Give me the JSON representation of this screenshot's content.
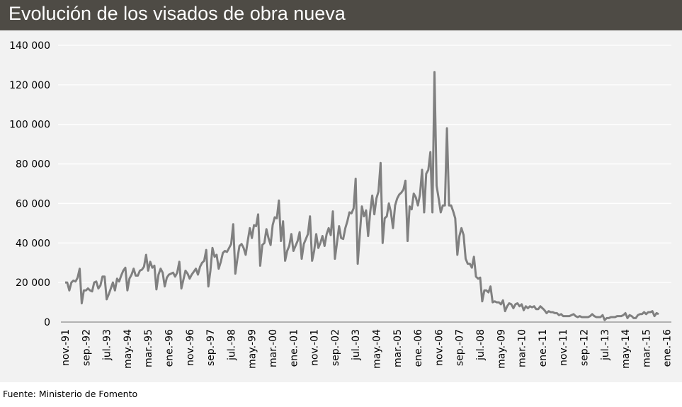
{
  "chart_data": {
    "type": "line",
    "title": "Evolución de los visados de obra nueva",
    "xlabel": "",
    "ylabel": "",
    "ylim": [
      0,
      140000
    ],
    "y_ticks": [
      0,
      20000,
      40000,
      60000,
      80000,
      100000,
      120000,
      140000
    ],
    "y_tick_labels": [
      "0",
      "20 000",
      "40 000",
      "60 000",
      "80 000",
      "100 000",
      "120 000",
      "140 000"
    ],
    "x_tick_labels": [
      "nov.-91",
      "sep.-92",
      "jul.-93",
      "may.-94",
      "mar.-95",
      "ene.-96",
      "nov.-96",
      "sep.-97",
      "jul.-98",
      "may.-99",
      "mar.-00",
      "ene.-01",
      "nov.-01",
      "sep.-02",
      "jul.-03",
      "may.-04",
      "mar.-05",
      "ene.-06",
      "nov.-06",
      "sep.-07",
      "jul.-08",
      "may.-09",
      "mar.-10",
      "ene.-11",
      "nov.-11",
      "sep.-12",
      "jul.-13",
      "may.-14",
      "mar.-15",
      "ene.-16"
    ],
    "x_tick_interval_months": 10,
    "frequency": "monthly",
    "grid": true,
    "line_color": "#808080",
    "series": [
      {
        "values": [
          20000,
          20000,
          16000,
          20000,
          21000,
          20500,
          22500,
          27000,
          9500,
          16000,
          16000,
          17000,
          16000,
          15500,
          20000,
          20500,
          17000,
          18500,
          23000,
          23000,
          11500,
          14000,
          17000,
          20000,
          16000,
          22000,
          20500,
          23500,
          26000,
          27500,
          16000,
          22000,
          24000,
          27000,
          23500,
          23500,
          26000,
          26500,
          28000,
          34000,
          26000,
          30500,
          27500,
          28500,
          16500,
          24000,
          27000,
          25000,
          18000,
          22500,
          24000,
          24500,
          25000,
          23000,
          25000,
          30500,
          17000,
          21500,
          26000,
          24500,
          22000,
          24000,
          25500,
          27000,
          24000,
          28000,
          30000,
          31000,
          36500,
          18000,
          26000,
          37500,
          33000,
          34000,
          27000,
          30500,
          35000,
          36000,
          35500,
          37500,
          39500,
          49500,
          24500,
          32000,
          38500,
          39500,
          37500,
          34000,
          41000,
          47500,
          42500,
          49000,
          48500,
          54500,
          28500,
          39000,
          40000,
          47000,
          42500,
          39000,
          49000,
          53000,
          52500,
          61500,
          41000,
          51000,
          31000,
          36000,
          38500,
          44500,
          36000,
          38500,
          41000,
          45500,
          32000,
          39500,
          42000,
          44500,
          53500,
          31000,
          36000,
          44500,
          37500,
          40000,
          43500,
          38500,
          44500,
          47500,
          44000,
          56000,
          32000,
          40000,
          48500,
          42500,
          42000,
          47500,
          51000,
          55500,
          55000,
          57500,
          72500,
          29500,
          44500,
          58500,
          53500,
          56500,
          43500,
          55500,
          64000,
          54500,
          62500,
          66000,
          80500,
          40000,
          52500,
          53500,
          60000,
          55500,
          47500,
          59000,
          62500,
          64500,
          65500,
          67000,
          71500,
          41000,
          58500,
          57000,
          65000,
          63000,
          59000,
          64500,
          77000,
          55500,
          75000,
          77000,
          86000,
          55500,
          126500,
          69000,
          62500,
          55500,
          59000,
          59000,
          98000,
          59000,
          59000,
          56000,
          52500,
          34000,
          43500,
          47500,
          44000,
          32000,
          29500,
          29500,
          27500,
          33000,
          23000,
          22000,
          22500,
          10500,
          16000,
          16000,
          15000,
          18000,
          10000,
          10500,
          10000,
          10000,
          9000,
          11000,
          5500,
          8000,
          9500,
          9000,
          7000,
          9000,
          9500,
          8000,
          9000,
          6000,
          8000,
          7000,
          8000,
          7500,
          8000,
          6500,
          6500,
          8000,
          7000,
          6000,
          4500,
          5500,
          5000,
          5000,
          4500,
          4500,
          3500,
          4000,
          3000,
          3000,
          3000,
          3000,
          3500,
          4000,
          3000,
          2500,
          3000,
          2500,
          2500,
          2500,
          2500,
          3000,
          4000,
          3000,
          2500,
          2500,
          2500,
          3500,
          1000,
          2000,
          2000,
          2500,
          2500,
          2500,
          3000,
          3000,
          3000,
          3500,
          4500,
          2000,
          3500,
          3000,
          2000,
          2000,
          3500,
          4000,
          4000,
          5000,
          4000,
          5000,
          5000,
          5500,
          3000,
          4500,
          4000
        ]
      }
    ]
  },
  "footer": {
    "source": "Fuente: Ministerio de Fomento"
  }
}
